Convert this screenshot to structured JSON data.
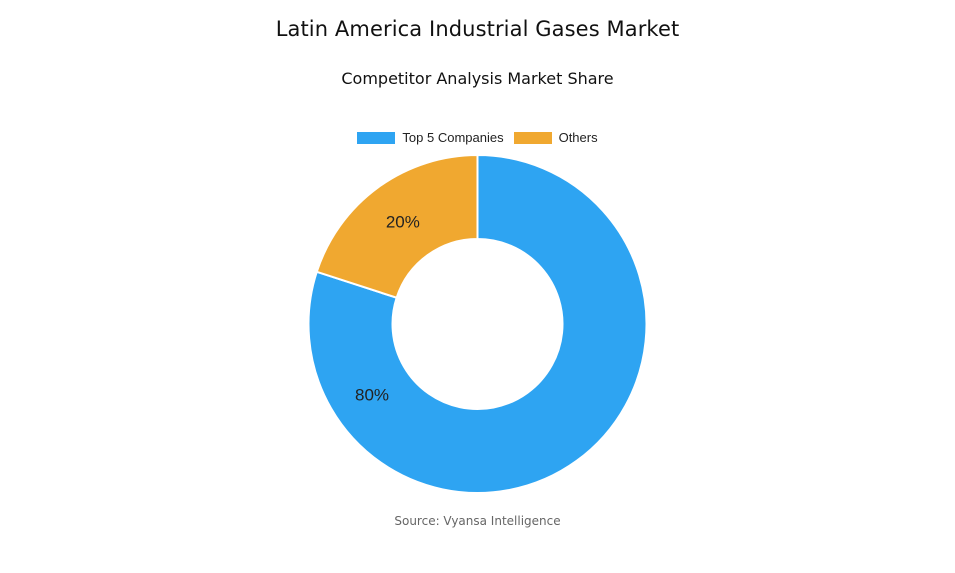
{
  "chart_data": {
    "type": "pie",
    "variant": "donut",
    "title": "Latin America Industrial Gases Market",
    "subtitle": "Competitor Analysis Market Share",
    "legend_position": "top",
    "series": [
      {
        "name": "Top 5 Companies",
        "value": 80,
        "label": "80%",
        "color": "#2EA4F2"
      },
      {
        "name": "Others",
        "value": 20,
        "label": "20%",
        "color": "#F0A830"
      }
    ]
  },
  "source": "Source: Vyansa Intelligence"
}
